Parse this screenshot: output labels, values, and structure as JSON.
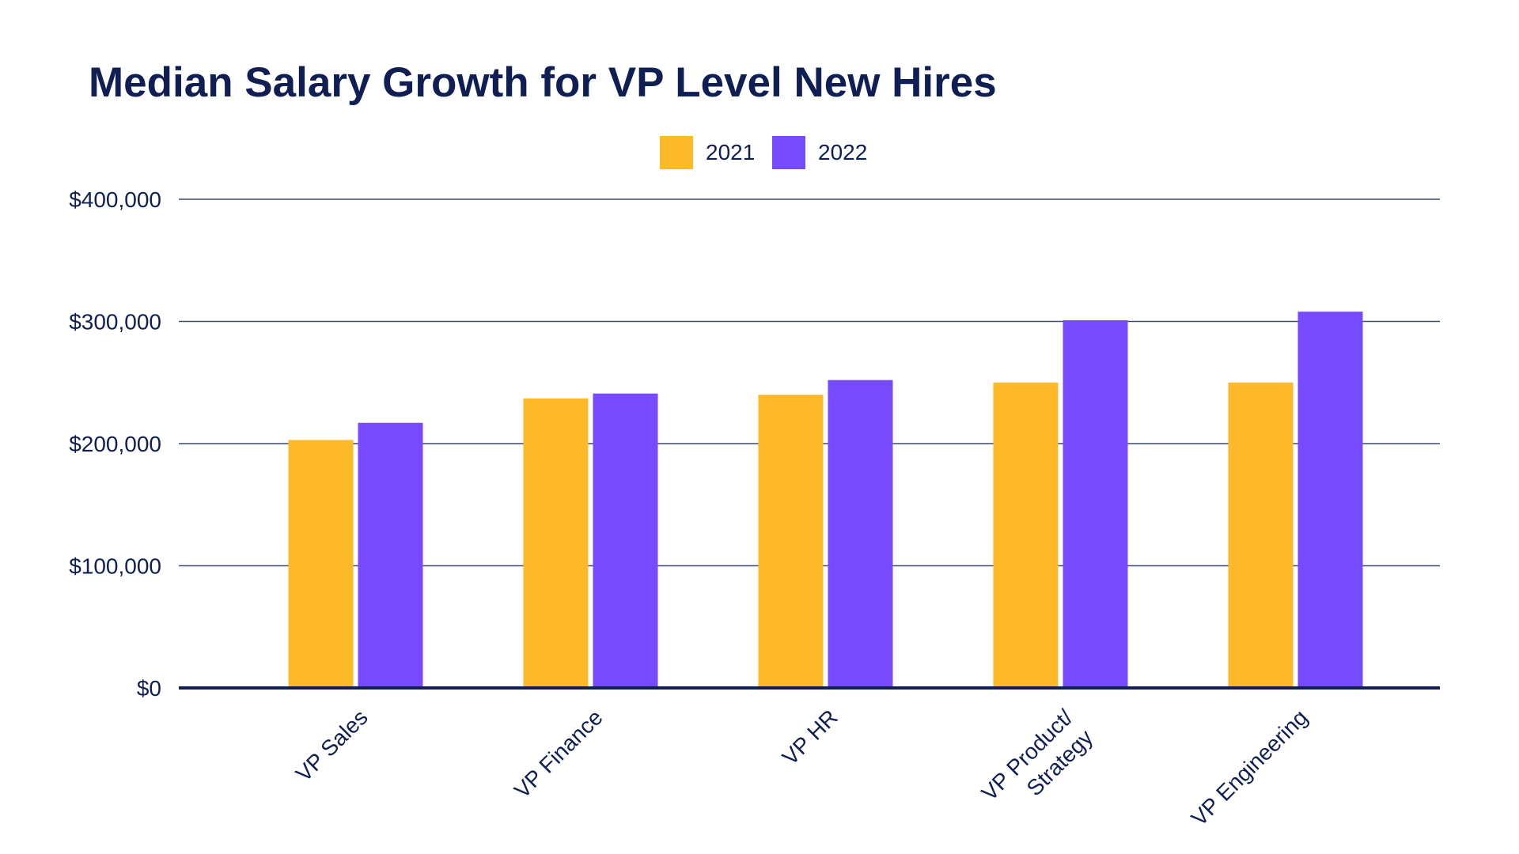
{
  "chart_data": {
    "type": "bar",
    "title": "Median Salary Growth for VP Level New Hires",
    "xlabel": "",
    "ylabel": "",
    "categories": [
      [
        "VP Sales"
      ],
      [
        "VP Finance"
      ],
      [
        "VP HR"
      ],
      [
        "VP Product/",
        "Strategy"
      ],
      [
        "VP Engineering"
      ]
    ],
    "series": [
      {
        "name": "2021",
        "color": "#fdb927",
        "values": [
          203000,
          237000,
          240000,
          250000,
          250000
        ]
      },
      {
        "name": "2022",
        "color": "#764afe",
        "values": [
          217000,
          241000,
          252000,
          301000,
          308000
        ]
      }
    ],
    "y_ticks": [
      0,
      100000,
      200000,
      300000,
      400000
    ],
    "y_tick_labels": [
      "$0",
      "$100,000",
      "$200,000",
      "$300,000",
      "$400,000"
    ],
    "ylim": [
      0,
      400000
    ],
    "grid": true,
    "legend_position": "top-center"
  },
  "colors": {
    "text": "#0f1f53",
    "grid": "#3d4a72",
    "baseline": "#0f1f53"
  }
}
